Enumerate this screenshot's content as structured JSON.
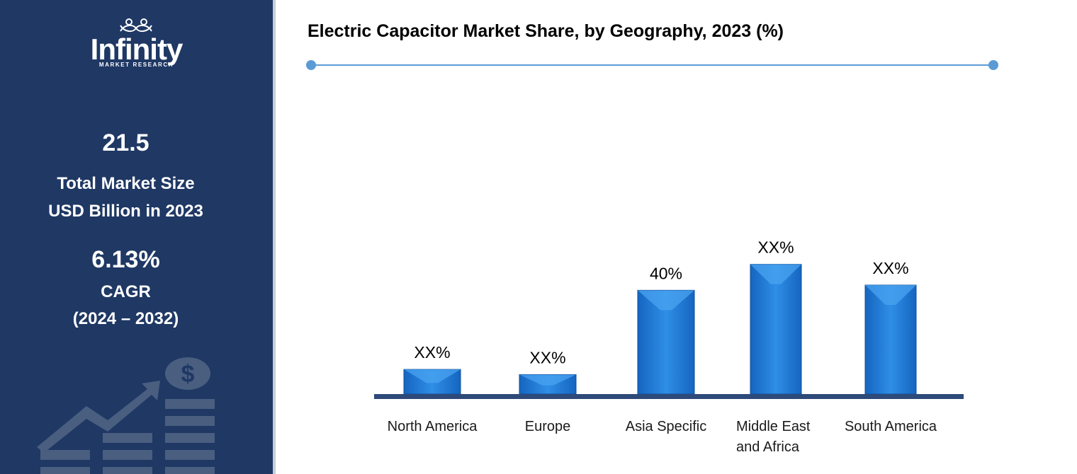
{
  "brand": {
    "name": "Infinity",
    "tagline": "MARKET RESEARCH"
  },
  "sidebar": {
    "market_size_value": "21.5",
    "market_size_label_1": "Total Market Size",
    "market_size_label_2": "USD Billion in 2023",
    "cagr_value": "6.13%",
    "cagr_label": "CAGR",
    "cagr_period": "(2024 – 2032)",
    "icons": [
      "dollar-coin-icon",
      "growth-arrow-icon",
      "coin-stack-icon"
    ]
  },
  "colors": {
    "sidebar_bg": "#1f3864",
    "accent": "#5b9bd5",
    "bar_main": "#1f7ad8",
    "bar_top": "#2f8ee6",
    "baseline": "#2e4a7a"
  },
  "chart_data": {
    "type": "bar",
    "title": "Electric Capacitor Market Share, by Geography, 2023 (%)",
    "categories": [
      [
        "North America"
      ],
      [
        "Europe"
      ],
      [
        "Asia Specific"
      ],
      [
        "Middle East",
        "and Africa"
      ],
      [
        "South America"
      ]
    ],
    "values": [
      9.5,
      7.5,
      40,
      50,
      42
    ],
    "data_labels": [
      "XX%",
      "XX%",
      "40%",
      "XX%",
      "XX%"
    ],
    "xlabel": "",
    "ylabel": "",
    "ylim": [
      0,
      60
    ],
    "grid": false,
    "legend": "none"
  }
}
